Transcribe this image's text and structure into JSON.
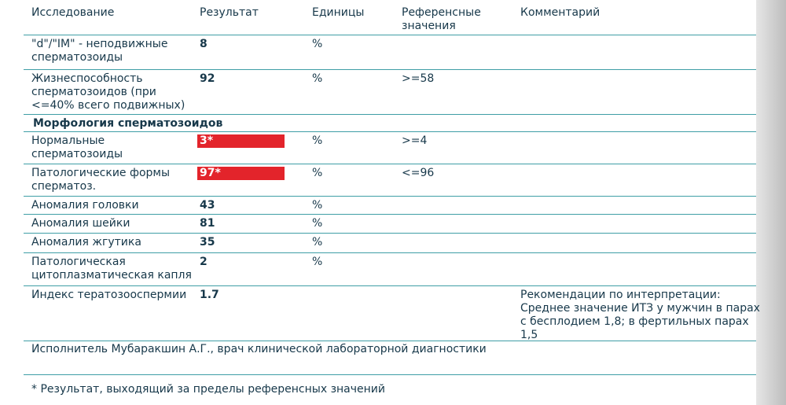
{
  "header": {
    "test": "Исследование",
    "result": "Результат",
    "units": "Единицы",
    "reference": "Референсные значения",
    "comment": "Комментарий"
  },
  "rows": [
    {
      "test": "\"d\"/\"IM\" - неподвижные сперматозоиды",
      "result": "8",
      "units": "%"
    },
    {
      "test": "Жизнеспособность сперматозоидов (при <=40% всего подвижных)",
      "result": "92",
      "units": "%",
      "reference": ">=58"
    },
    {
      "section": "Морфология сперматозоидов"
    },
    {
      "test": "Нормальные сперматозоиды",
      "result": "3*",
      "flagged": true,
      "units": "%",
      "reference": ">=4"
    },
    {
      "test": "Патологические формы сперматоз.",
      "result": "97*",
      "flagged": true,
      "units": "%",
      "reference": "<=96"
    },
    {
      "test": "Аномалия головки",
      "result": "43",
      "units": "%"
    },
    {
      "test": "Аномалия шейки",
      "result": "81",
      "units": "%"
    },
    {
      "test": "Аномалия жгутика",
      "result": "35",
      "units": "%"
    },
    {
      "test": "Патологическая цитоплазматическая капля",
      "result": "2",
      "units": "%"
    },
    {
      "test": "Индекс тератозооспермии",
      "result": "1.7",
      "comment": "Рекомендации по интерпретации: Среднее значение ИТЗ у мужчин в парах с бесплодием 1,8; в фертильных парах 1,5"
    }
  ],
  "executor": "Исполнитель Мубаракшин  А.Г., врач клинической лабораторной диагностики",
  "footnote": "* Результат, выходящий за пределы референсных значений"
}
